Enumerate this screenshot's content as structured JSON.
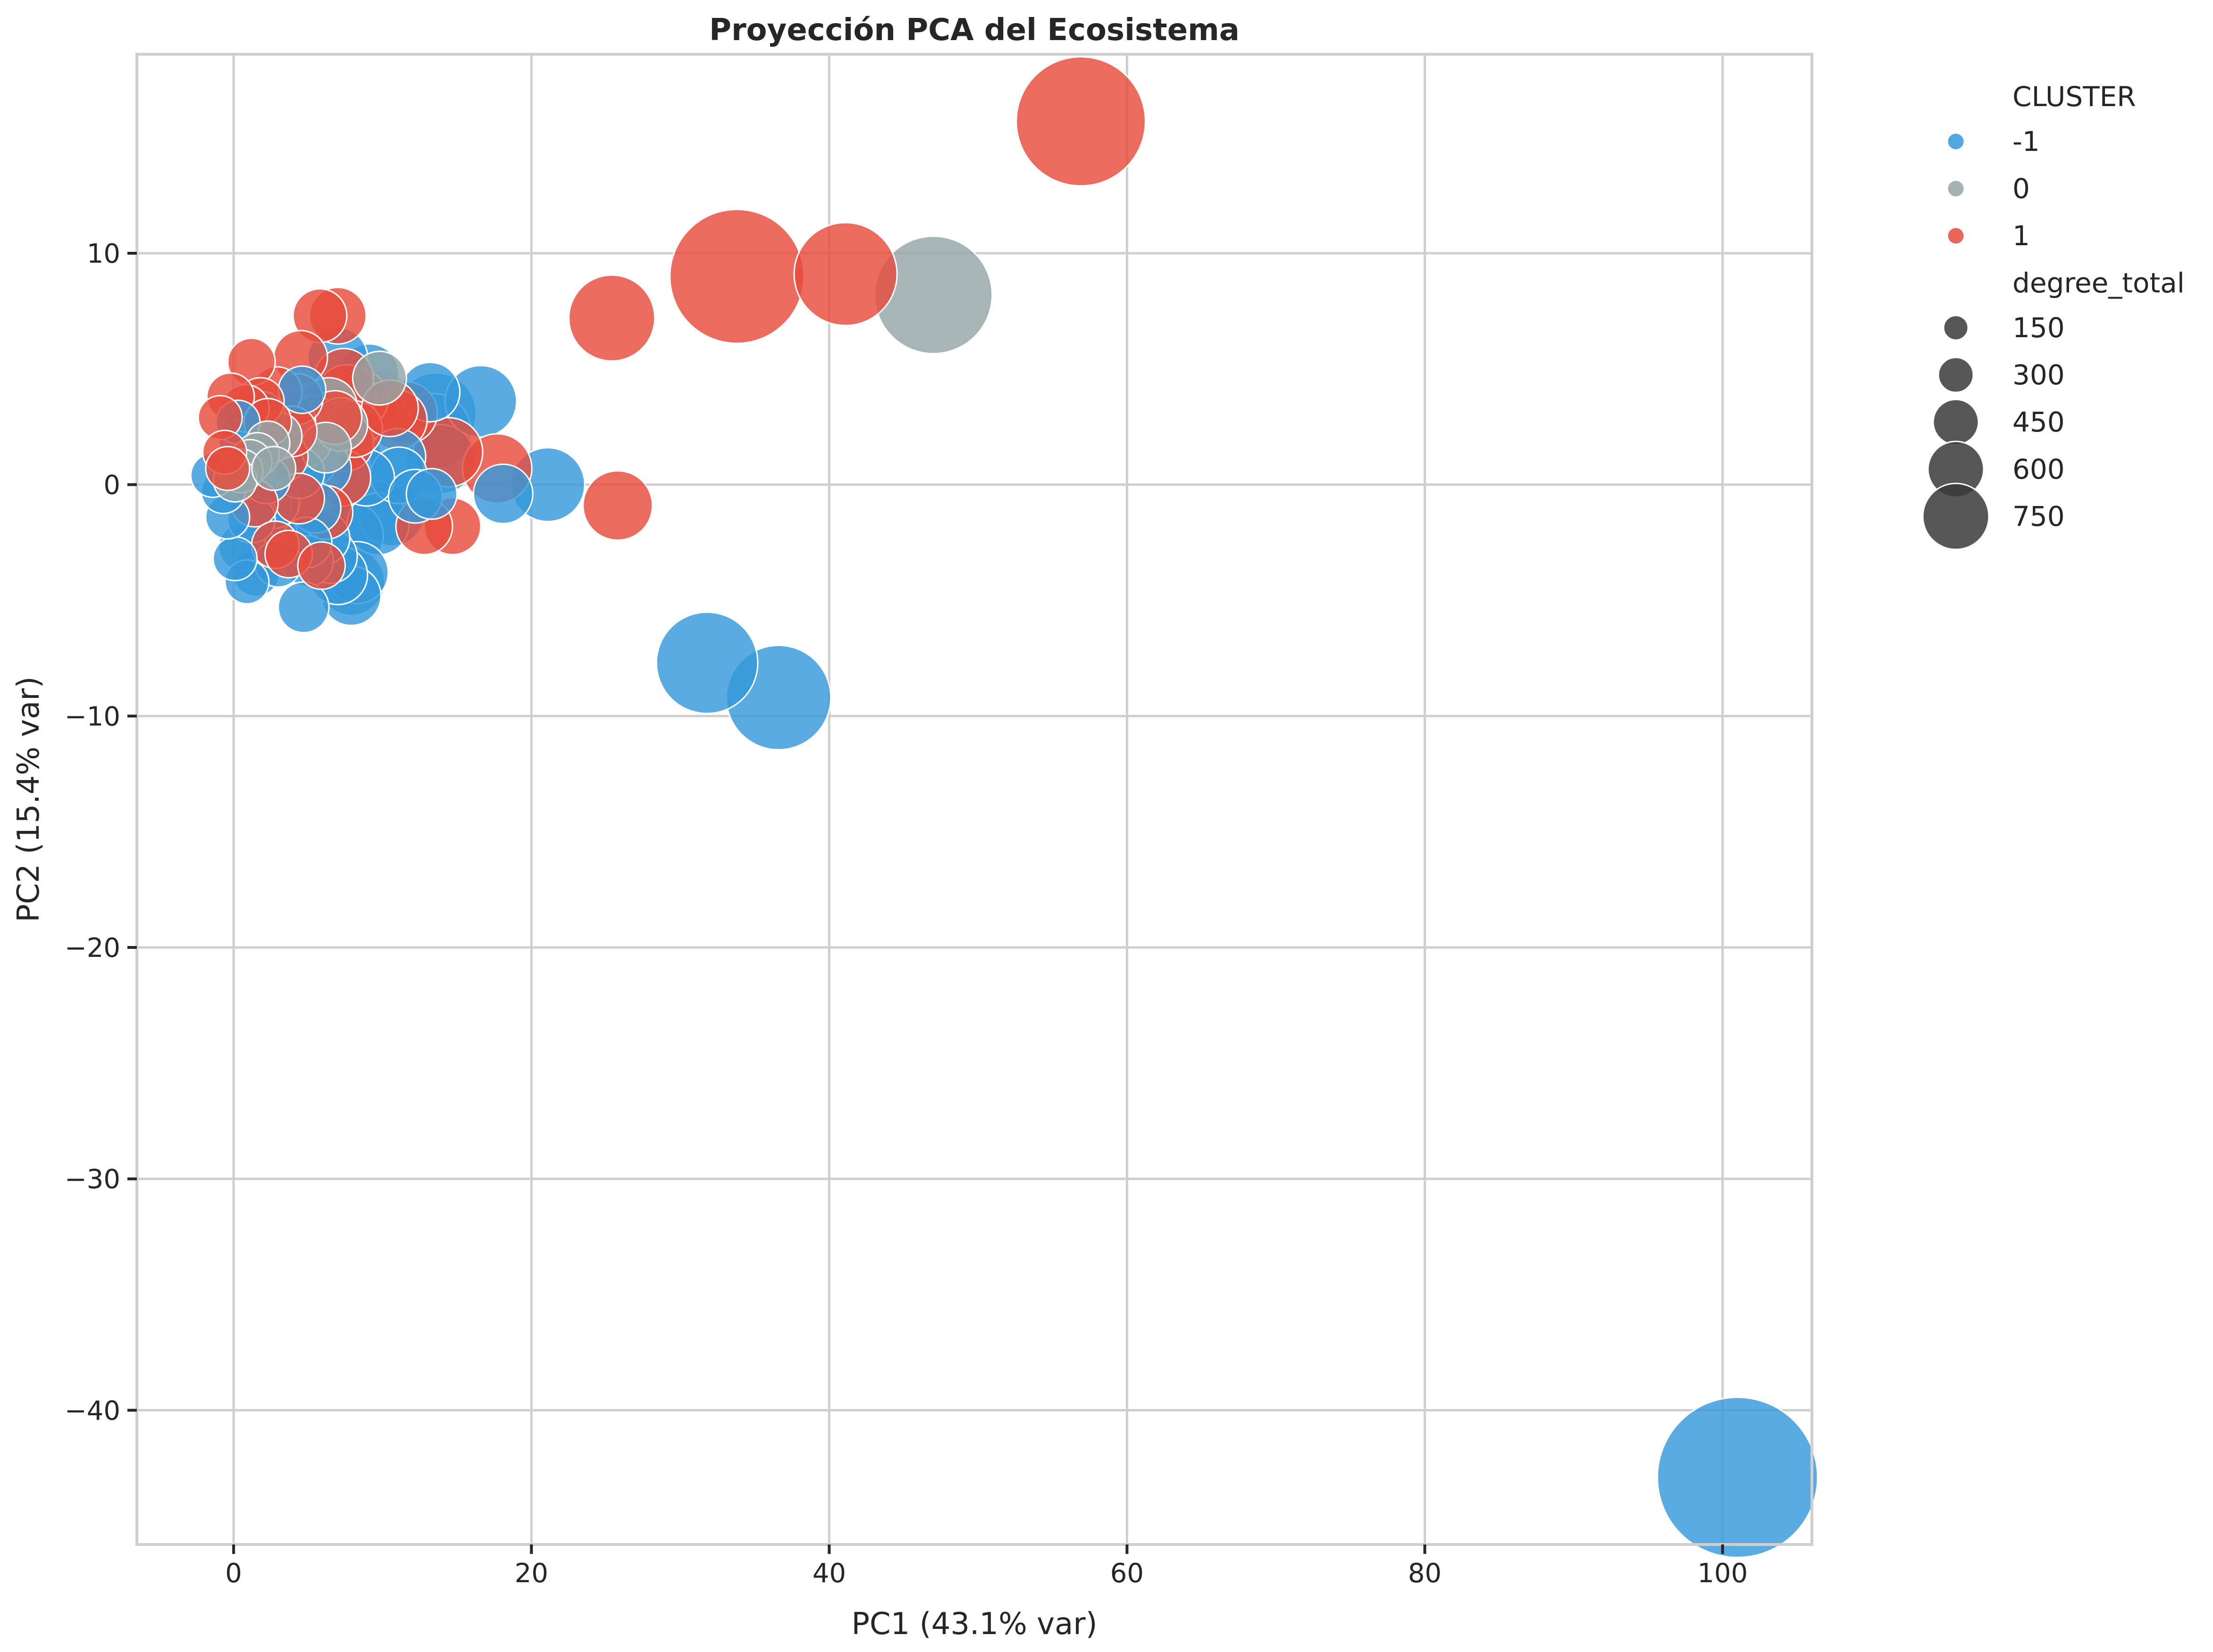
{
  "chart_data": {
    "type": "scatter",
    "title": "Proyección PCA del Ecosistema",
    "xlabel": "PC1 (43.1% var)",
    "ylabel": "PC2 (15.4% var)",
    "xlim": [
      -6.5,
      106
    ],
    "ylim": [
      -45.8,
      18.6
    ],
    "xticks": [
      0,
      20,
      40,
      60,
      80,
      100
    ],
    "yticks": [
      10,
      0,
      -10,
      -20,
      -30,
      -40
    ],
    "xtick_labels": [
      "0",
      "20",
      "40",
      "60",
      "80",
      "100"
    ],
    "ytick_labels": [
      "10",
      "0",
      "−10",
      "−20",
      "−30",
      "−40"
    ],
    "grid": true,
    "legend": {
      "placement": "outside-right",
      "hue_title": "CLUSTER",
      "hue_entries": [
        {
          "label": "-1",
          "color": "#3498db"
        },
        {
          "label": "0",
          "color": "#95a5a6"
        },
        {
          "label": "1",
          "color": "#e74c3c"
        }
      ],
      "size_title": "degree_total",
      "size_entries": [
        {
          "label": "150",
          "value": 150
        },
        {
          "label": "300",
          "value": 300
        },
        {
          "label": "450",
          "value": 450
        },
        {
          "label": "600",
          "value": 600
        },
        {
          "label": "750",
          "value": 750
        }
      ]
    },
    "series": [
      {
        "name": "-1",
        "color": "#3498db",
        "points": [
          [
            101,
            -42.9,
            800
          ],
          [
            36.6,
            -9.2,
            340
          ],
          [
            31.8,
            -7.7,
            320
          ],
          [
            21.1,
            0.0,
            170
          ],
          [
            18.1,
            -0.4,
            110
          ],
          [
            16.6,
            3.6,
            160
          ],
          [
            13.6,
            3.1,
            200
          ],
          [
            13.4,
            2.3,
            180
          ],
          [
            13.9,
            1.1,
            150
          ],
          [
            13.2,
            4.0,
            110
          ],
          [
            13.3,
            -0.4,
            80
          ],
          [
            12.2,
            -0.5,
            90
          ],
          [
            11.0,
            1.2,
            100
          ],
          [
            11.1,
            0.4,
            100
          ],
          [
            10.6,
            -1.2,
            140
          ],
          [
            9.7,
            -1.7,
            120
          ],
          [
            9.2,
            -1.1,
            170
          ],
          [
            8.9,
            0.3,
            100
          ],
          [
            9.1,
            4.8,
            110
          ],
          [
            7.0,
            5.5,
            110
          ],
          [
            7.9,
            1.3,
            110
          ],
          [
            7.8,
            -2.2,
            140
          ],
          [
            7.9,
            -4.2,
            140
          ],
          [
            8.3,
            -3.8,
            120
          ],
          [
            7.9,
            -4.8,
            110
          ],
          [
            7.0,
            -3.9,
            110
          ],
          [
            6.5,
            -3.1,
            90
          ],
          [
            5.5,
            -1.0,
            80
          ],
          [
            6.0,
            -2.3,
            90
          ],
          [
            5.0,
            -3.3,
            80
          ],
          [
            4.7,
            -5.3,
            80
          ],
          [
            4.6,
            4.1,
            70
          ],
          [
            4.1,
            2.6,
            90
          ],
          [
            3.5,
            1.6,
            80
          ],
          [
            3.1,
            0.4,
            90
          ],
          [
            2.6,
            -2.2,
            80
          ],
          [
            2.0,
            -3.1,
            70
          ],
          [
            1.5,
            -3.8,
            70
          ],
          [
            0.9,
            -4.2,
            60
          ],
          [
            0.6,
            -2.7,
            70
          ],
          [
            0.1,
            -3.2,
            60
          ],
          [
            -0.4,
            -1.4,
            60
          ],
          [
            -0.7,
            -0.3,
            60
          ],
          [
            -1.4,
            0.4,
            60
          ],
          [
            0.6,
            1.9,
            70
          ],
          [
            1.9,
            3.0,
            70
          ],
          [
            2.7,
            -0.8,
            80
          ],
          [
            3.8,
            -1.8,
            90
          ],
          [
            4.4,
            0.5,
            80
          ],
          [
            5.2,
            1.1,
            90
          ],
          [
            6.1,
            0.7,
            90
          ],
          [
            6.8,
            2.2,
            110
          ],
          [
            1.2,
            -1.5,
            70
          ],
          [
            0.3,
            2.7,
            60
          ],
          [
            4.9,
            -2.5,
            80
          ],
          [
            3.0,
            -3.4,
            70
          ],
          [
            2.2,
            0.2,
            70
          ]
        ]
      },
      {
        "name": "0",
        "color": "#95a5a6",
        "points": [
          [
            47,
            8.2,
            430
          ],
          [
            9.9,
            3.5,
            130
          ],
          [
            9.8,
            4.6,
            90
          ],
          [
            7.5,
            3.0,
            120
          ],
          [
            6.4,
            3.4,
            100
          ],
          [
            5.2,
            2.6,
            100
          ],
          [
            3.8,
            2.8,
            80
          ],
          [
            3.0,
            2.1,
            70
          ],
          [
            2.3,
            1.8,
            60
          ],
          [
            1.6,
            1.3,
            60
          ],
          [
            1.1,
            1.0,
            60
          ],
          [
            0.5,
            0.6,
            60
          ],
          [
            0.1,
            0.2,
            60
          ],
          [
            4.8,
            1.9,
            90
          ],
          [
            6.2,
            1.6,
            80
          ],
          [
            2.7,
            0.7,
            60
          ],
          [
            7.2,
            2.6,
            90
          ]
        ]
      },
      {
        "name": "1",
        "color": "#e74c3c",
        "points": [
          [
            56.9,
            15.7,
            520
          ],
          [
            33.8,
            9.0,
            560
          ],
          [
            41.1,
            9.1,
            330
          ],
          [
            25.4,
            7.2,
            230
          ],
          [
            25.8,
            -0.9,
            150
          ],
          [
            17.7,
            0.7,
            150
          ],
          [
            14.7,
            -1.8,
            100
          ],
          [
            12.8,
            -1.8,
            100
          ],
          [
            14.4,
            1.4,
            150
          ],
          [
            11.6,
            3.1,
            120
          ],
          [
            11.0,
            2.8,
            110
          ],
          [
            9.0,
            3.1,
            120
          ],
          [
            8.4,
            3.7,
            110
          ],
          [
            7.6,
            3.9,
            110
          ],
          [
            7.4,
            4.6,
            110
          ],
          [
            7.0,
            7.3,
            100
          ],
          [
            5.8,
            7.3,
            90
          ],
          [
            4.5,
            5.5,
            90
          ],
          [
            1.2,
            5.3,
            70
          ],
          [
            7.5,
            1.8,
            100
          ],
          [
            7.3,
            0.3,
            100
          ],
          [
            6.2,
            -1.2,
            90
          ],
          [
            5.4,
            2.6,
            100
          ],
          [
            4.3,
            3.7,
            80
          ],
          [
            2.9,
            4.0,
            80
          ],
          [
            1.8,
            3.6,
            70
          ],
          [
            0.8,
            3.3,
            70
          ],
          [
            -0.2,
            3.8,
            70
          ],
          [
            -0.9,
            2.9,
            60
          ],
          [
            -0.6,
            1.4,
            60
          ],
          [
            -0.4,
            0.7,
            60
          ],
          [
            1.4,
            -0.8,
            70
          ],
          [
            2.8,
            -2.6,
            70
          ],
          [
            3.7,
            -3.0,
            70
          ],
          [
            5.9,
            -3.5,
            70
          ],
          [
            3.3,
            1.2,
            80
          ],
          [
            4.4,
            -0.6,
            80
          ],
          [
            2.3,
            2.7,
            70
          ],
          [
            6.8,
            2.9,
            90
          ],
          [
            8.1,
            2.4,
            100
          ],
          [
            10.5,
            3.3,
            100
          ],
          [
            3.9,
            2.3,
            80
          ]
        ]
      }
    ]
  }
}
